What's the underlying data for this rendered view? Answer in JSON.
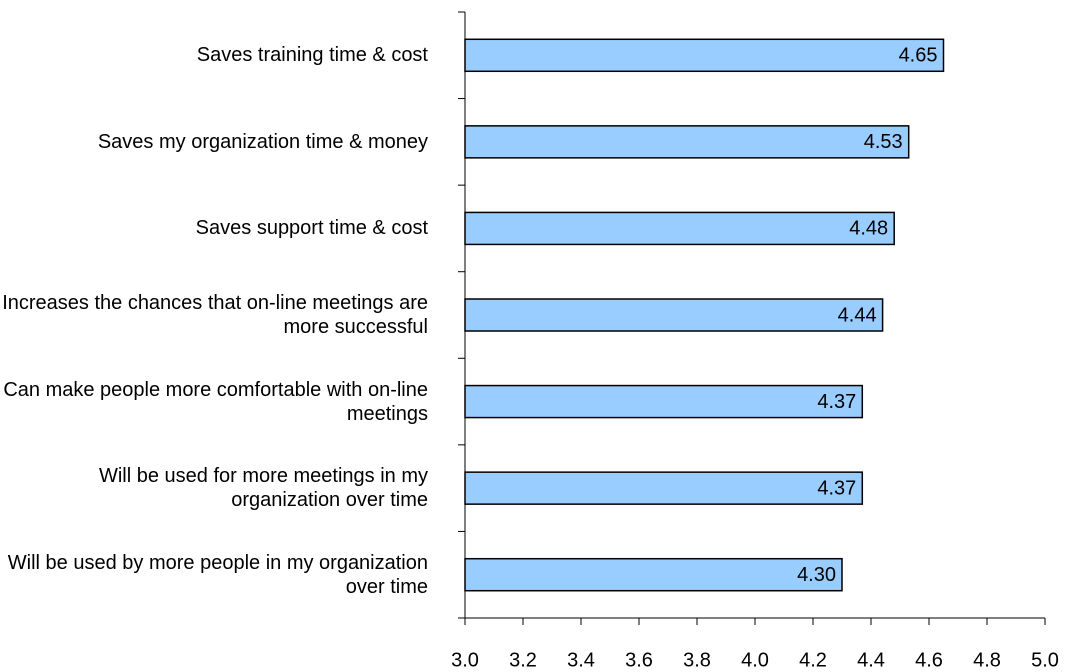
{
  "chart_data": {
    "type": "barh",
    "categories": [
      "Saves training time & cost",
      "Saves my organization time & money",
      "Saves support time & cost",
      "Increases the chances that on-line meetings are more successful",
      "Can make people more comfortable with on-line meetings",
      "Will be used for more meetings in my organization over time",
      "Will be used by more people in my organization over time"
    ],
    "values": [
      4.65,
      4.53,
      4.48,
      4.44,
      4.37,
      4.37,
      4.3
    ],
    "value_labels": [
      "4.65",
      "4.53",
      "4.48",
      "4.44",
      "4.37",
      "4.37",
      "4.30"
    ],
    "color": "#99ccff",
    "xlim": [
      3.0,
      5.0
    ],
    "xticks": [
      {
        "value": 3.0,
        "label": "3.0"
      },
      {
        "value": 3.2,
        "label": "3.2"
      },
      {
        "value": 3.4,
        "label": "3.4"
      },
      {
        "value": 3.6,
        "label": "3.6"
      },
      {
        "value": 3.8,
        "label": "3.8"
      },
      {
        "value": 4.0,
        "label": "4.0"
      },
      {
        "value": 4.2,
        "label": "4.2"
      },
      {
        "value": 4.4,
        "label": "4.4"
      },
      {
        "value": 4.6,
        "label": "4.6"
      },
      {
        "value": 4.8,
        "label": "4.8"
      },
      {
        "value": 5.0,
        "label": "5.0"
      }
    ]
  }
}
